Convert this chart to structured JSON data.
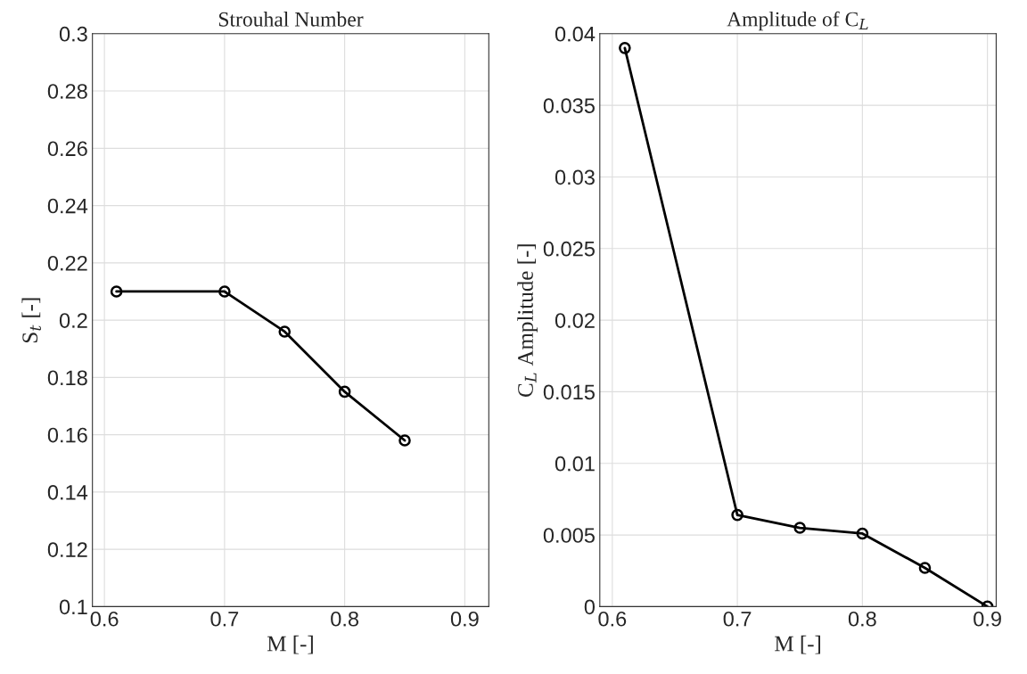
{
  "chart_data": [
    {
      "type": "line",
      "title": "Strouhal Number",
      "xlabel": "M [-]",
      "ylabel": "S$_{t}$ [-]",
      "x": [
        0.61,
        0.7,
        0.75,
        0.8,
        0.85
      ],
      "series": [
        {
          "color": "#000000",
          "values": [
            0.21,
            0.21,
            0.196,
            0.175,
            0.158
          ]
        }
      ],
      "xlim": [
        0.59,
        0.92
      ],
      "xticks": [
        0.6,
        0.7,
        0.8,
        0.9
      ],
      "ylim": [
        0.1,
        0.3
      ],
      "yticks": [
        0.1,
        0.12,
        0.14,
        0.16,
        0.18,
        0.2,
        0.22,
        0.24,
        0.26,
        0.28,
        0.3
      ],
      "grid": true,
      "marker": "circle",
      "line_style": "solid"
    },
    {
      "type": "line",
      "title": "Amplitude of C$_{L}$",
      "xlabel": "M [-]",
      "ylabel": "C$_{L}$ Amplitude [-]",
      "x": [
        0.61,
        0.7,
        0.75,
        0.8,
        0.85,
        0.9
      ],
      "series": [
        {
          "color": "#000000",
          "values": [
            0.039,
            0.0064,
            0.0055,
            0.0051,
            0.0027,
            0.0
          ]
        }
      ],
      "xlim": [
        0.59,
        0.907
      ],
      "xticks": [
        0.6,
        0.7,
        0.8,
        0.9
      ],
      "ylim": [
        0,
        0.04
      ],
      "yticks": [
        0,
        0.005,
        0.01,
        0.015,
        0.02,
        0.025,
        0.03,
        0.035,
        0.04
      ],
      "grid": true,
      "marker": "circle",
      "line_style": "solid"
    }
  ]
}
